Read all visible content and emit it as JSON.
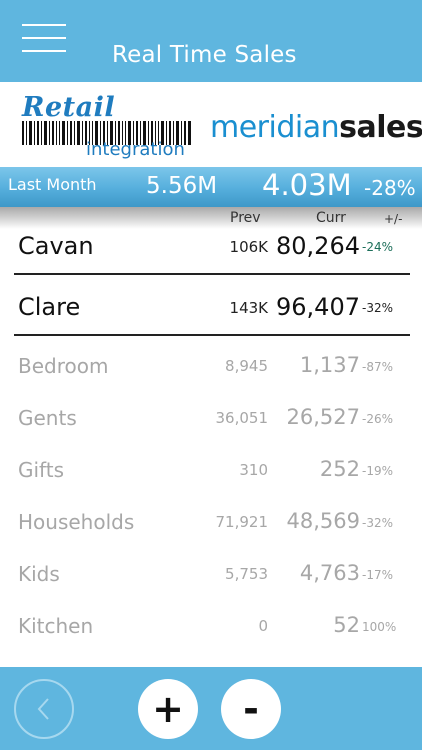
{
  "header": {
    "title": "Real Time Sales",
    "menu_icon": "hamburger-menu-icon"
  },
  "logo": {
    "retail": "Retail",
    "integration": "integration",
    "brand_light": "meridian",
    "brand_bold": "sales"
  },
  "summary": {
    "label": "Last Month",
    "prev": "5.56M",
    "curr": "4.03M",
    "pct": "-28%"
  },
  "columns": {
    "prev": "Prev",
    "curr": "Curr",
    "change": "+/-"
  },
  "stores": [
    {
      "name": "Cavan",
      "prev": "106K",
      "curr": "80,264",
      "pct": "-24%"
    },
    {
      "name": "Clare",
      "prev": "143K",
      "curr": "96,407",
      "pct": "-32%"
    }
  ],
  "departments": [
    {
      "name": "Bedroom",
      "prev": "8,945",
      "curr": "1,137",
      "pct": "-87%"
    },
    {
      "name": "Gents",
      "prev": "36,051",
      "curr": "26,527",
      "pct": "-26%"
    },
    {
      "name": "Gifts",
      "prev": "310",
      "curr": "252",
      "pct": "-19%"
    },
    {
      "name": "Households",
      "prev": "71,921",
      "curr": "48,569",
      "pct": "-32%"
    },
    {
      "name": "Kids",
      "prev": "5,753",
      "curr": "4,763",
      "pct": "-17%"
    },
    {
      "name": "Kitchen",
      "prev": "0",
      "curr": "52",
      "pct": "100%"
    }
  ],
  "footer": {
    "back_icon": "chevron-left-icon",
    "plus": "+",
    "minus": "-"
  },
  "colors": {
    "accent": "#5fb6df",
    "positive_pct": "#1d6f5a",
    "negative_pct": "#222222",
    "brand_blue": "#1a8fd0"
  }
}
